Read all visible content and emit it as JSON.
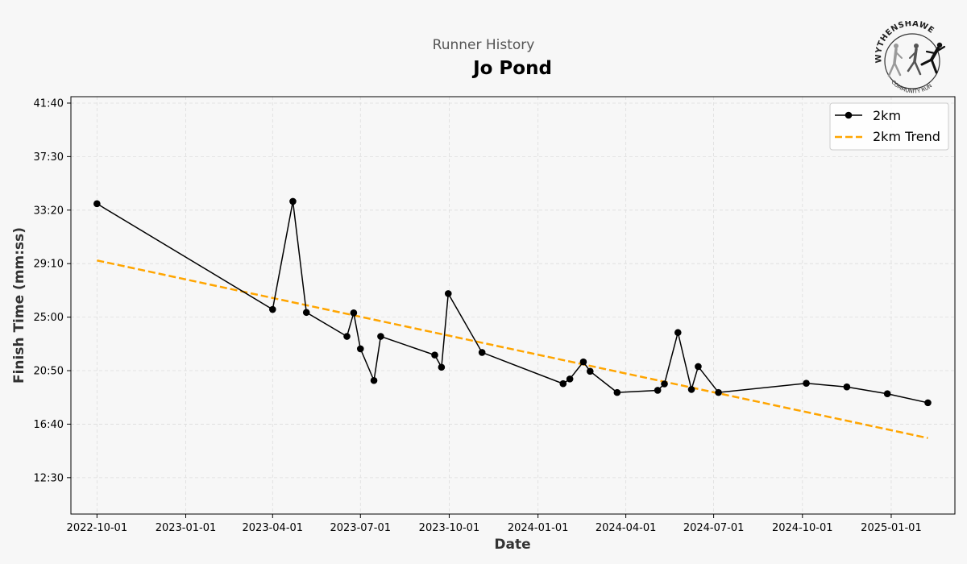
{
  "header": {
    "subtitle": "Runner History",
    "title": "Jo Pond"
  },
  "logo": {
    "top_text": "WYTHENSHAWE",
    "bottom_text": "COMMUNITY RUN"
  },
  "chart_data": {
    "type": "line",
    "title": "Jo Pond",
    "subtitle": "Runner History",
    "xlabel": "Date",
    "ylabel": "Finish Time (mm:ss)",
    "xlim": [
      "2022-09-04",
      "2025-03-08"
    ],
    "ylim_seconds": [
      580,
      2530
    ],
    "x_ticks": [
      {
        "date": "2022-10-01",
        "label": "2022-10-01"
      },
      {
        "date": "2023-01-01",
        "label": "2023-01-01"
      },
      {
        "date": "2023-04-01",
        "label": "2023-04-01"
      },
      {
        "date": "2023-07-01",
        "label": "2023-07-01"
      },
      {
        "date": "2023-10-01",
        "label": "2023-10-01"
      },
      {
        "date": "2024-01-01",
        "label": "2024-01-01"
      },
      {
        "date": "2024-04-01",
        "label": "2024-04-01"
      },
      {
        "date": "2024-07-01",
        "label": "2024-07-01"
      },
      {
        "date": "2024-10-01",
        "label": "2024-10-01"
      },
      {
        "date": "2025-01-01",
        "label": "2025-01-01"
      }
    ],
    "y_ticks": [
      {
        "seconds": 750,
        "label": "12:30"
      },
      {
        "seconds": 1000,
        "label": "16:40"
      },
      {
        "seconds": 1250,
        "label": "20:50"
      },
      {
        "seconds": 1500,
        "label": "25:00"
      },
      {
        "seconds": 1750,
        "label": "29:10"
      },
      {
        "seconds": 2000,
        "label": "33:20"
      },
      {
        "seconds": 2250,
        "label": "37:30"
      },
      {
        "seconds": 2500,
        "label": "41:40"
      }
    ],
    "grid": true,
    "legend": {
      "position": "top-right"
    },
    "series": [
      {
        "name": "2km",
        "color": "#000000",
        "style": "solid",
        "marker": "circle",
        "points": [
          {
            "date": "2022-10-01",
            "seconds": 2030
          },
          {
            "date": "2023-04-01",
            "seconds": 1536
          },
          {
            "date": "2023-04-22",
            "seconds": 2041
          },
          {
            "date": "2023-05-06",
            "seconds": 1522
          },
          {
            "date": "2023-06-17",
            "seconds": 1410
          },
          {
            "date": "2023-06-24",
            "seconds": 1520
          },
          {
            "date": "2023-07-01",
            "seconds": 1352
          },
          {
            "date": "2023-07-15",
            "seconds": 1204
          },
          {
            "date": "2023-07-22",
            "seconds": 1410
          },
          {
            "date": "2023-09-16",
            "seconds": 1323
          },
          {
            "date": "2023-09-23",
            "seconds": 1266
          },
          {
            "date": "2023-09-30",
            "seconds": 1610
          },
          {
            "date": "2023-11-04",
            "seconds": 1335
          },
          {
            "date": "2024-01-27",
            "seconds": 1189
          },
          {
            "date": "2024-02-03",
            "seconds": 1211
          },
          {
            "date": "2024-02-17",
            "seconds": 1291
          },
          {
            "date": "2024-02-24",
            "seconds": 1247
          },
          {
            "date": "2024-03-23",
            "seconds": 1148
          },
          {
            "date": "2024-05-04",
            "seconds": 1158
          },
          {
            "date": "2024-05-11",
            "seconds": 1188
          },
          {
            "date": "2024-05-25",
            "seconds": 1428
          },
          {
            "date": "2024-06-08",
            "seconds": 1162
          },
          {
            "date": "2024-06-15",
            "seconds": 1269
          },
          {
            "date": "2024-07-06",
            "seconds": 1148
          },
          {
            "date": "2024-10-05",
            "seconds": 1191
          },
          {
            "date": "2024-11-16",
            "seconds": 1174
          },
          {
            "date": "2024-12-28",
            "seconds": 1142
          },
          {
            "date": "2025-02-08",
            "seconds": 1100
          }
        ]
      },
      {
        "name": "2km Trend",
        "color": "#ffa500",
        "style": "dashed",
        "points": [
          {
            "date": "2022-10-01",
            "seconds": 1765
          },
          {
            "date": "2025-02-08",
            "seconds": 935
          }
        ]
      }
    ]
  }
}
